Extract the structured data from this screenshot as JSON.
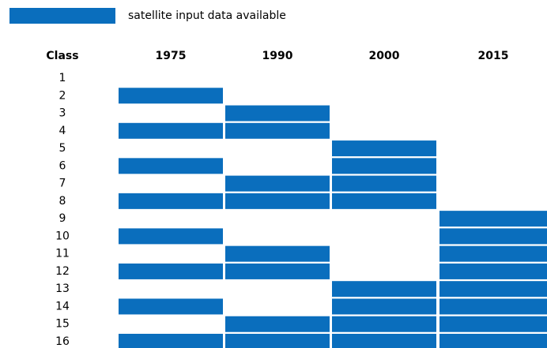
{
  "legend": {
    "label": "satellite input data available",
    "color": "#0a6ebd"
  },
  "header": {
    "class": "Class",
    "epochs": [
      "1975",
      "1990",
      "2000",
      "2015"
    ]
  },
  "rows": [
    {
      "class": 1,
      "available": [
        false,
        false,
        false,
        false
      ]
    },
    {
      "class": 2,
      "available": [
        true,
        false,
        false,
        false
      ]
    },
    {
      "class": 3,
      "available": [
        false,
        true,
        false,
        false
      ]
    },
    {
      "class": 4,
      "available": [
        true,
        true,
        false,
        false
      ]
    },
    {
      "class": 5,
      "available": [
        false,
        false,
        true,
        false
      ]
    },
    {
      "class": 6,
      "available": [
        true,
        false,
        true,
        false
      ]
    },
    {
      "class": 7,
      "available": [
        false,
        true,
        true,
        false
      ]
    },
    {
      "class": 8,
      "available": [
        true,
        true,
        true,
        false
      ]
    },
    {
      "class": 9,
      "available": [
        false,
        false,
        false,
        true
      ]
    },
    {
      "class": 10,
      "available": [
        true,
        false,
        false,
        true
      ]
    },
    {
      "class": 11,
      "available": [
        false,
        true,
        false,
        true
      ]
    },
    {
      "class": 12,
      "available": [
        true,
        true,
        false,
        true
      ]
    },
    {
      "class": 13,
      "available": [
        false,
        false,
        true,
        true
      ]
    },
    {
      "class": 14,
      "available": [
        true,
        false,
        true,
        true
      ]
    },
    {
      "class": 15,
      "available": [
        false,
        true,
        true,
        true
      ]
    },
    {
      "class": 16,
      "available": [
        true,
        true,
        true,
        true
      ]
    }
  ]
}
